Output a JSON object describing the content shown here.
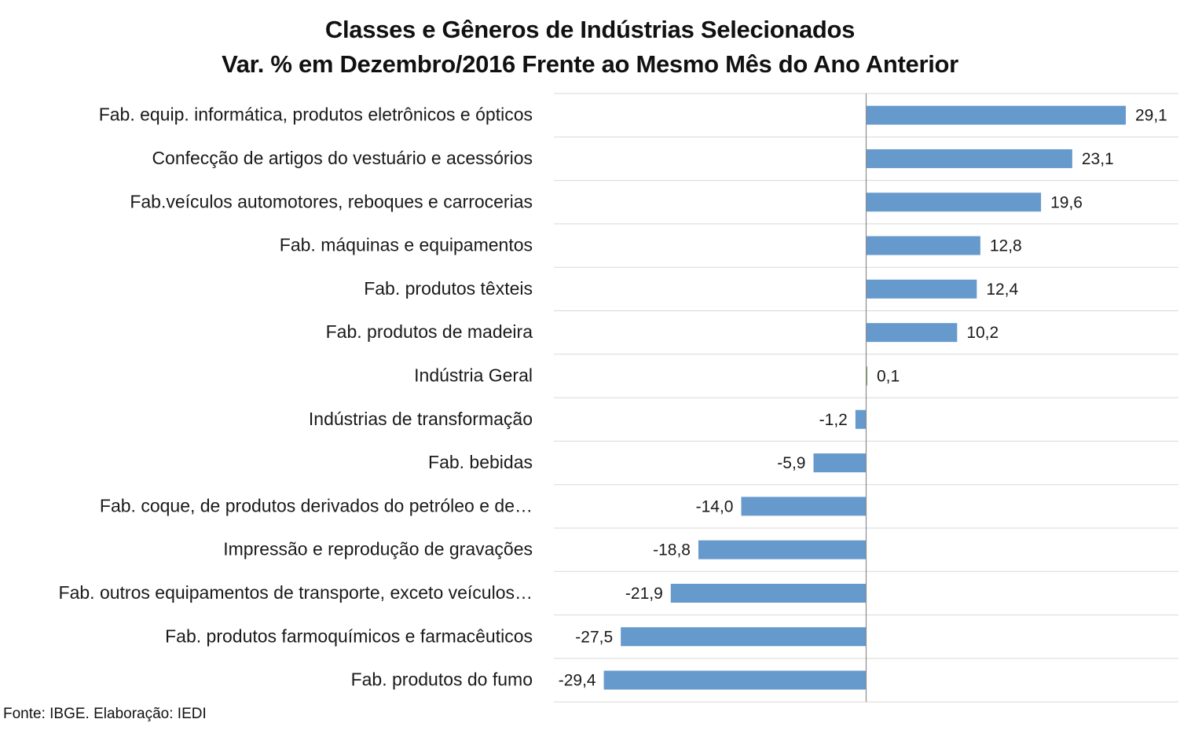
{
  "chart_data": {
    "type": "bar",
    "orientation": "horizontal",
    "title": "Classes e Gêneros de Indústrias Selecionados",
    "subtitle": "Var. % em Dezembro/2016 Frente ao Mesmo Mês do Ano Anterior",
    "categories": [
      "Fab. equip. informática, produtos eletrônicos e ópticos",
      "Confecção de artigos do vestuário e acessórios",
      "Fab.veículos automotores, reboques e carrocerias",
      "Fab. máquinas e equipamentos",
      "Fab. produtos têxteis",
      "Fab. produtos de madeira",
      "Indústria Geral",
      "Indústrias de transformação",
      "Fab. bebidas",
      "Fab. coque, de produtos derivados do petróleo e de…",
      "Impressão e reprodução de gravações",
      "Fab. outros equipamentos de transporte, exceto veículos…",
      "Fab. produtos farmoquímicos e farmacêuticos",
      "Fab. produtos do fumo"
    ],
    "values": [
      29.1,
      23.1,
      19.6,
      12.8,
      12.4,
      10.2,
      0.1,
      -1.2,
      -5.9,
      -14.0,
      -18.8,
      -21.9,
      -27.5,
      -29.4
    ],
    "value_labels": [
      "29,1",
      "23,1",
      "19,6",
      "12,8",
      "12,4",
      "10,2",
      "0,1",
      "-1,2",
      "-5,9",
      "-14,0",
      "-18,8",
      "-21,9",
      "-27,5",
      "-29,4"
    ],
    "xlim": [
      -35,
      35
    ],
    "grid": true,
    "bar_color": "#6699cc",
    "highlight_color": "#77a35a",
    "highlight_category": "Indústria Geral"
  },
  "source": "Fonte: IBGE. Elaboração: IEDI"
}
